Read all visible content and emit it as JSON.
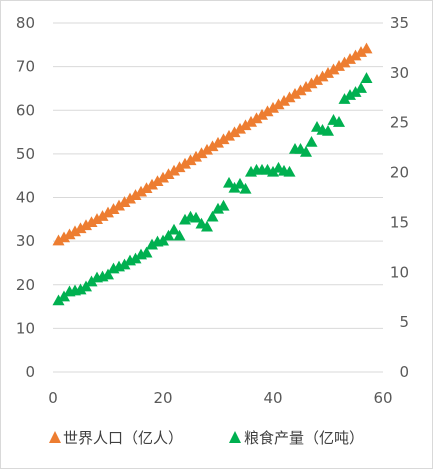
{
  "chart_data": {
    "type": "scatter",
    "x_axis": {
      "ticks": [
        "0",
        "20",
        "40",
        "60"
      ],
      "range": [
        0,
        60
      ]
    },
    "y_axis_left": {
      "ticks": [
        "0",
        "10",
        "20",
        "30",
        "40",
        "50",
        "60",
        "70",
        "80"
      ],
      "range": [
        0,
        80
      ]
    },
    "y_axis_right": {
      "ticks": [
        "0",
        "5",
        "10",
        "15",
        "20",
        "25",
        "30",
        "35"
      ],
      "range": [
        0,
        35
      ]
    },
    "grid": "horizontal",
    "legend_position": "bottom",
    "series": [
      {
        "name": "世界人口（亿人）",
        "axis": "left",
        "color": "#ED7D31",
        "marker": "triangle",
        "x": [
          1,
          2,
          3,
          4,
          5,
          6,
          7,
          8,
          9,
          10,
          11,
          12,
          13,
          14,
          15,
          16,
          17,
          18,
          19,
          20,
          21,
          22,
          23,
          24,
          25,
          26,
          27,
          28,
          29,
          30,
          31,
          32,
          33,
          34,
          35,
          36,
          37,
          38,
          39,
          40,
          41,
          42,
          43,
          44,
          45,
          46,
          47,
          48,
          49,
          50,
          51,
          52,
          53,
          54,
          55,
          56,
          57
        ],
        "values": [
          30.2,
          30.9,
          31.6,
          32.3,
          33.0,
          33.7,
          34.4,
          35.1,
          35.8,
          36.6,
          37.4,
          38.2,
          39.0,
          39.8,
          40.6,
          41.4,
          42.2,
          43.0,
          43.8,
          44.6,
          45.4,
          46.2,
          47.0,
          47.8,
          48.6,
          49.4,
          50.2,
          51.0,
          51.8,
          52.6,
          53.4,
          54.2,
          55.0,
          55.8,
          56.6,
          57.4,
          58.2,
          59.0,
          59.8,
          60.6,
          61.4,
          62.2,
          63.0,
          63.8,
          64.6,
          65.4,
          66.2,
          67.0,
          67.8,
          68.6,
          69.4,
          70.2,
          71.0,
          71.8,
          72.6,
          73.4,
          74.2
        ]
      },
      {
        "name": "粮食产量（亿吨）",
        "axis": "right",
        "color": "#00B050",
        "marker": "triangle",
        "x": [
          1,
          2,
          3,
          4,
          5,
          6,
          7,
          8,
          9,
          10,
          11,
          12,
          13,
          14,
          15,
          16,
          17,
          18,
          19,
          20,
          21,
          22,
          23,
          24,
          25,
          26,
          27,
          28,
          29,
          30,
          31,
          32,
          33,
          34,
          35,
          36,
          37,
          38,
          39,
          40,
          41,
          42,
          43,
          44,
          45,
          46,
          47,
          48,
          49,
          50,
          51,
          52,
          53,
          54,
          55,
          56,
          57
        ],
        "values": [
          7.2,
          7.6,
          8.1,
          8.2,
          8.3,
          8.6,
          9.1,
          9.5,
          9.6,
          9.8,
          10.4,
          10.6,
          10.8,
          11.2,
          11.4,
          11.8,
          12.0,
          12.8,
          13.1,
          13.2,
          13.7,
          14.3,
          13.7,
          15.3,
          15.6,
          15.5,
          14.9,
          14.6,
          15.6,
          16.4,
          16.7,
          19.0,
          18.5,
          18.9,
          18.4,
          20.1,
          20.3,
          20.3,
          20.3,
          20.1,
          20.5,
          20.2,
          20.1,
          22.4,
          22.4,
          22.1,
          23.1,
          24.6,
          24.3,
          24.2,
          25.3,
          25.1,
          27.4,
          27.8,
          28.1,
          28.5,
          29.5
        ]
      }
    ]
  },
  "legend": [
    {
      "label": "世界人口（亿人）",
      "color": "#ED7D31"
    },
    {
      "label": "粮食产量（亿吨）",
      "color": "#00B050"
    }
  ]
}
